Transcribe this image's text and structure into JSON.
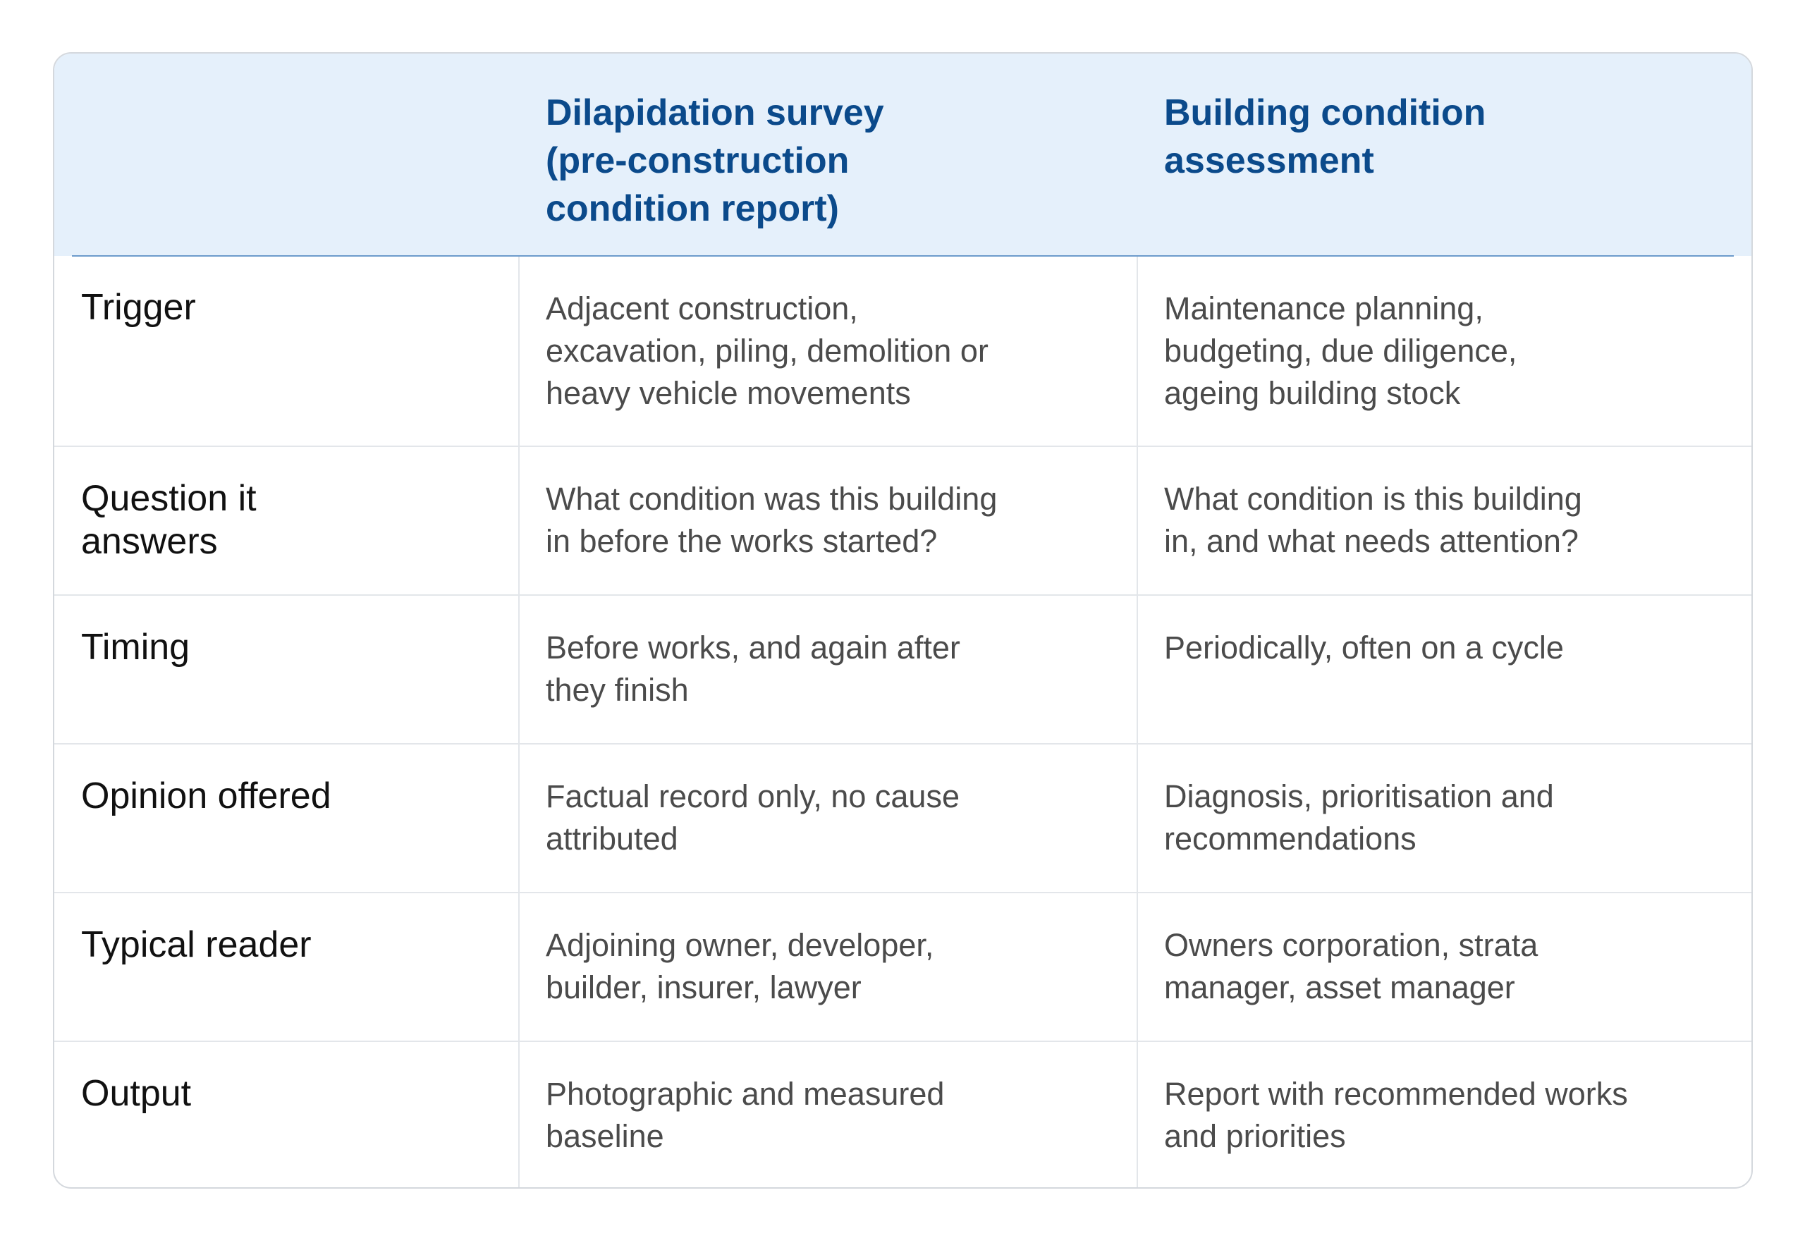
{
  "columns": {
    "col1": "Dilapidation survey\n(pre-construction\ncondition report)",
    "col2": "Building condition\nassessment"
  },
  "rows": [
    {
      "label": "Trigger",
      "col1": "Adjacent construction,\nexcavation, piling, demolition or\nheavy vehicle movements",
      "col2": "Maintenance planning,\nbudgeting, due diligence,\nageing building stock"
    },
    {
      "label": "Question it\nanswers",
      "col1": "What condition was this building\nin before the works started?",
      "col2": "What condition is this building\nin, and what needs attention?"
    },
    {
      "label": "Timing",
      "col1": "Before works, and again after\nthey finish",
      "col2": "Periodically, often on a cycle"
    },
    {
      "label": "Opinion offered",
      "col1": "Factual record only, no cause\nattributed",
      "col2": "Diagnosis, prioritisation and\nrecommendations"
    },
    {
      "label": "Typical reader",
      "col1": "Adjoining owner, developer,\nbuilder, insurer, lawyer",
      "col2": "Owners corporation, strata\nmanager, asset manager"
    },
    {
      "label": "Output",
      "col1": "Photographic and measured\nbaseline",
      "col2": "Report with recommended works\nand priorities"
    }
  ]
}
